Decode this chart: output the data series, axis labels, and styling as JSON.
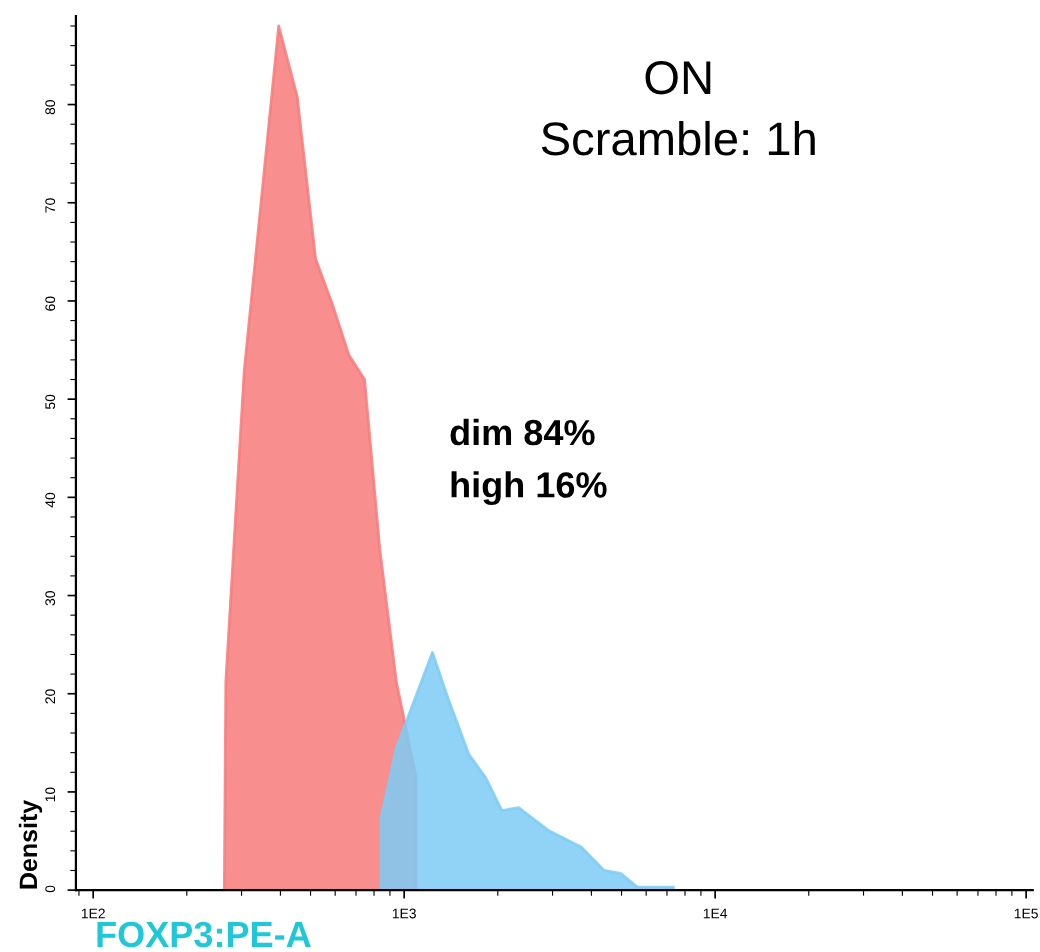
{
  "chart_data": {
    "type": "area",
    "xlabel": "FOXP3:PE-A",
    "ylabel": "Density",
    "log": "x",
    "annotations": [
      "ON",
      "Scramble: 1h",
      "dim 84%",
      "high 16%"
    ],
    "series": [
      {
        "color": "#f87a7a",
        "x": [
          264,
          267,
          306,
          395,
          453,
          519,
          593,
          664,
          746,
          835,
          944,
          1092,
          1092
        ],
        "values": [
          0,
          21.2,
          52.9,
          88,
          80.8,
          64.3,
          59.3,
          54.5,
          52,
          34.7,
          21.2,
          11.5,
          0
        ]
      },
      {
        "color": "#7ccbf5",
        "x": [
          843,
          843,
          944,
          1233,
          1396,
          1616,
          1825,
          2062,
          2333,
          2904,
          3707,
          4399,
          4969,
          5620,
          7345,
          7345
        ],
        "values": [
          0,
          7.4,
          14.5,
          24.2,
          19.2,
          13.8,
          11.5,
          8.1,
          8.4,
          6.1,
          4.4,
          2.0,
          1.7,
          0.3,
          0.3,
          0
        ]
      }
    ],
    "xlim": [
      88,
      105000
    ],
    "xticks": [
      {
        "value": 100,
        "label": "1E2"
      },
      {
        "value": 1000,
        "label": "1E3"
      },
      {
        "value": 10000,
        "label": "1E4"
      },
      {
        "value": 100000,
        "label": "1E5"
      }
    ],
    "ylim": [
      0,
      89
    ],
    "yticks": [
      0,
      10,
      20,
      30,
      40,
      50,
      60,
      70,
      80
    ],
    "grid": false
  }
}
